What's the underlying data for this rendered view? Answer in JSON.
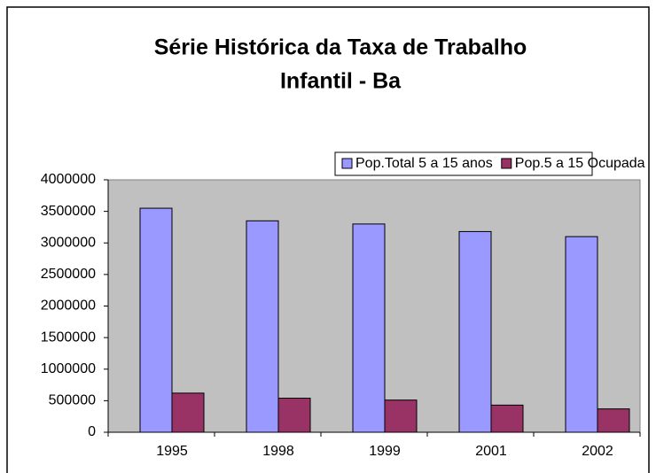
{
  "chart_data": {
    "type": "bar",
    "title": [
      "Série Histórica da Taxa de Trabalho",
      "Infantil - Ba"
    ],
    "categories": [
      "1995",
      "1998",
      "1999",
      "2001",
      "2002"
    ],
    "series": [
      {
        "name": "Pop.Total 5 a 15 anos",
        "color": "#9999ff",
        "values": [
          3550000,
          3350000,
          3300000,
          3180000,
          3100000
        ]
      },
      {
        "name": "Pop.5 a 15 Ocupada",
        "color": "#993366",
        "values": [
          620000,
          540000,
          510000,
          430000,
          370000
        ]
      }
    ],
    "ylim": [
      0,
      4000000
    ],
    "yticks": [
      0,
      500000,
      1000000,
      1500000,
      2000000,
      2500000,
      3000000,
      3500000,
      4000000
    ],
    "legend": "top"
  }
}
